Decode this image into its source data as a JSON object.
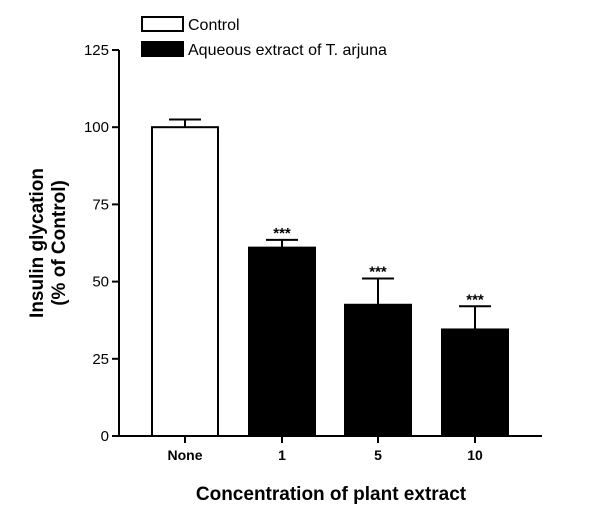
{
  "chart_data": {
    "type": "bar",
    "categories": [
      "None",
      "1",
      "5",
      "10"
    ],
    "series": [
      {
        "name": "Control",
        "values": [
          100,
          null,
          null,
          null
        ],
        "errors": [
          2.5,
          null,
          null,
          null
        ],
        "color": "#ffffff"
      },
      {
        "name": "Aqueous extract of T. arjuna",
        "values": [
          null,
          61,
          42.5,
          34.5
        ],
        "errors": [
          null,
          2.5,
          8.5,
          7.5
        ],
        "color": "#000000"
      }
    ],
    "annotations": [
      {
        "category": "1",
        "text": "***"
      },
      {
        "category": "5",
        "text": "***"
      },
      {
        "category": "10",
        "text": "***"
      }
    ],
    "xlabel": "Concentration of plant extract",
    "ylabel_lines": [
      "Insulin glycation",
      "(% of Control)"
    ],
    "ylim": [
      0,
      125
    ],
    "yticks": [
      0,
      25,
      50,
      75,
      100,
      125
    ],
    "grid": false,
    "legend_placement": "top"
  }
}
